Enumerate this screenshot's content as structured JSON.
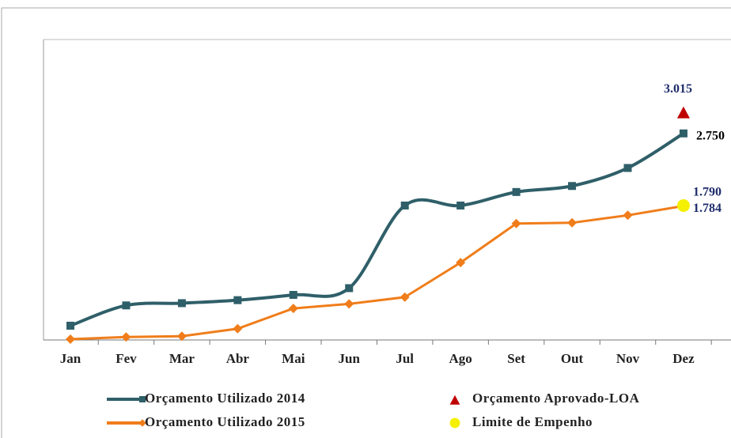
{
  "chart_data": {
    "type": "line",
    "categories": [
      "Jan",
      "Fev",
      "Mar",
      "Abr",
      "Mai",
      "Jun",
      "Jul",
      "Ago",
      "Set",
      "Out",
      "Nov",
      "Dez"
    ],
    "ylim": [
      0,
      4
    ],
    "series": [
      {
        "name": "Orçamento Utilizado 2014",
        "color": "#2f5f69",
        "marker": "square",
        "smooth": true,
        "values": [
          0.19,
          0.46,
          0.49,
          0.53,
          0.6,
          0.69,
          1.79,
          1.79,
          1.97,
          2.05,
          2.29,
          2.75
        ],
        "value_labels": [
          null,
          null,
          null,
          null,
          null,
          null,
          null,
          null,
          null,
          null,
          null,
          "2.750"
        ]
      },
      {
        "name": "Orçamento Utilizado 2015",
        "color": "#f07d1a",
        "marker": "diamond",
        "smooth": false,
        "values": [
          0.01,
          0.04,
          0.05,
          0.15,
          0.42,
          0.48,
          0.57,
          1.03,
          1.55,
          1.56,
          1.66,
          1.784
        ],
        "value_labels": [
          null,
          null,
          null,
          null,
          null,
          null,
          null,
          null,
          null,
          null,
          null,
          "1.784"
        ]
      },
      {
        "name": "Orçamento Aprovado-LOA",
        "color": "#c00000",
        "marker": "triangle",
        "values": [
          null,
          null,
          null,
          null,
          null,
          null,
          null,
          null,
          null,
          null,
          null,
          3.015
        ],
        "value_labels": [
          null,
          null,
          null,
          null,
          null,
          null,
          null,
          null,
          null,
          null,
          null,
          "3.015"
        ]
      },
      {
        "name": "Limite de Empenho",
        "color": "#f5f000",
        "marker": "circle",
        "values": [
          null,
          null,
          null,
          null,
          null,
          null,
          null,
          null,
          null,
          null,
          null,
          1.79
        ],
        "value_labels": [
          null,
          null,
          null,
          null,
          null,
          null,
          null,
          null,
          null,
          null,
          null,
          "1.790"
        ]
      }
    ]
  }
}
